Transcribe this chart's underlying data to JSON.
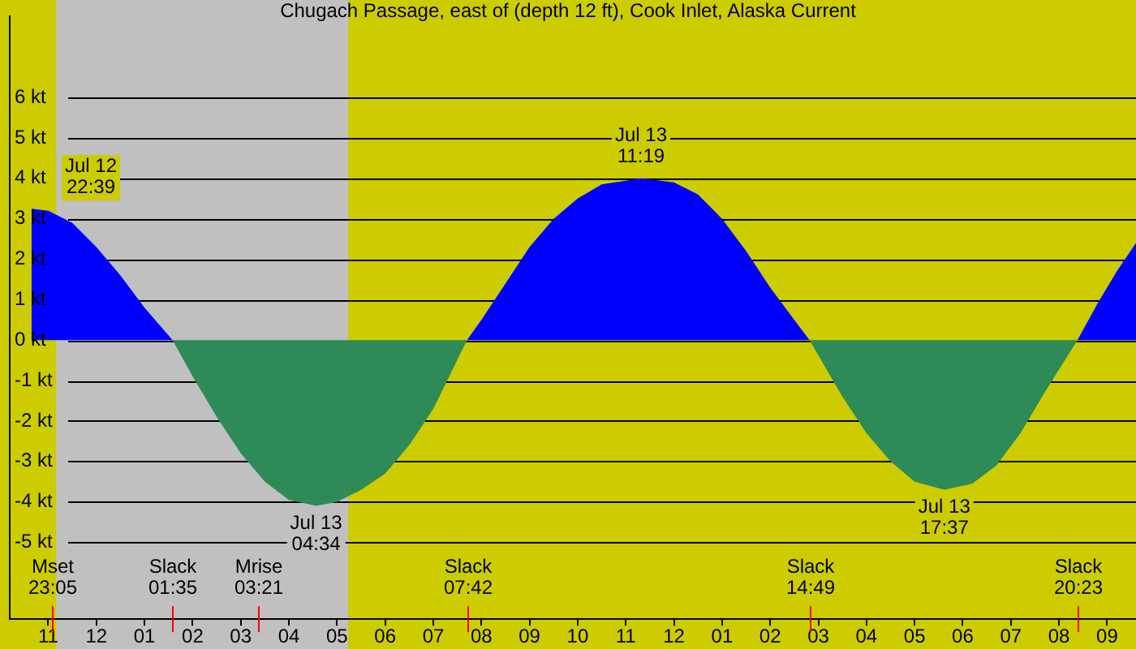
{
  "chart_data": {
    "type": "area",
    "title": "Chugach Passage, east of (depth 12 ft), Cook Inlet, Alaska Current",
    "series": [
      {
        "color": "#0000ff",
        "x": [
          "--07-12T22:39",
          "--07-12T23:00",
          "--07-12T23:30",
          "--07-13T00:00",
          "--07-13T00:30",
          "--07-13T01:00",
          "--07-13T01:35",
          "--07-13T01:36",
          "--07-13T07:41",
          "--07-13T07:42",
          "--07-13T08:00",
          "--07-13T08:30",
          "--07-13T09:00",
          "--07-13T09:30",
          "--07-13T10:00",
          "--07-13T10:30",
          "--07-13T11:19",
          "--07-13T12:00",
          "--07-13T12:30",
          "--07-13T13:00",
          "--07-13T13:30",
          "--07-13T14:00",
          "--07-13T14:30",
          "--07-13T14:49",
          "--07-13T14:50",
          "--07-13T20:22",
          "--07-13T20:23",
          "--07-13T20:48",
          "--07-13T21:12",
          "--07-13T21:36"
        ],
        "values": [
          3.25,
          3.2,
          2.9,
          2.3,
          1.6,
          0.8,
          0,
          null,
          null,
          0,
          0.5,
          1.4,
          2.3,
          3.0,
          3.5,
          3.85,
          4.0,
          3.9,
          3.6,
          3.0,
          2.2,
          1.3,
          0.5,
          0,
          null,
          null,
          0,
          0.9,
          1.7,
          2.4
        ]
      },
      {
        "color": "#2e8b57",
        "x": [
          "--07-13T01:35",
          "--07-13T02:00",
          "--07-13T02:30",
          "--07-13T03:00",
          "--07-13T03:30",
          "--07-13T04:00",
          "--07-13T04:34",
          "--07-13T05:00",
          "--07-13T05:30",
          "--07-13T06:00",
          "--07-13T06:30",
          "--07-13T07:00",
          "--07-13T07:42",
          "--07-13T07:43",
          "--07-13T14:48",
          "--07-13T14:49",
          "--07-13T15:30",
          "--07-13T16:00",
          "--07-13T16:30",
          "--07-13T17:00",
          "--07-13T17:37",
          "--07-13T18:12",
          "--07-13T18:42",
          "--07-13T19:12",
          "--07-13T19:42",
          "--07-13T20:23"
        ],
        "values": [
          0,
          -0.9,
          -1.9,
          -2.8,
          -3.5,
          -3.95,
          -4.1,
          -4.0,
          -3.7,
          -3.3,
          -2.6,
          -1.7,
          0,
          null,
          null,
          0,
          -1.4,
          -2.3,
          -3.0,
          -3.5,
          -3.7,
          -3.55,
          -3.1,
          -2.3,
          -1.3,
          0
        ]
      }
    ],
    "xlim": [
      "--07-12T22:12",
      "--07-13T21:36"
    ],
    "xticks": [
      {
        "value": "--07-12T23:00",
        "label": "11"
      },
      {
        "value": "--07-13T00:00",
        "label": "12"
      },
      {
        "value": "--07-13T01:00",
        "label": "01"
      },
      {
        "value": "--07-13T02:00",
        "label": "02"
      },
      {
        "value": "--07-13T03:00",
        "label": "03"
      },
      {
        "value": "--07-13T04:00",
        "label": "04"
      },
      {
        "value": "--07-13T05:00",
        "label": "05"
      },
      {
        "value": "--07-13T06:00",
        "label": "06"
      },
      {
        "value": "--07-13T07:00",
        "label": "07"
      },
      {
        "value": "--07-13T08:00",
        "label": "08"
      },
      {
        "value": "--07-13T09:00",
        "label": "09"
      },
      {
        "value": "--07-13T10:00",
        "label": "10"
      },
      {
        "value": "--07-13T11:00",
        "label": "11"
      },
      {
        "value": "--07-13T12:00",
        "label": "12"
      },
      {
        "value": "--07-13T13:00",
        "label": "01"
      },
      {
        "value": "--07-13T14:00",
        "label": "02"
      },
      {
        "value": "--07-13T15:00",
        "label": "03"
      },
      {
        "value": "--07-13T16:00",
        "label": "04"
      },
      {
        "value": "--07-13T17:00",
        "label": "05"
      },
      {
        "value": "--07-13T18:00",
        "label": "06"
      },
      {
        "value": "--07-13T19:00",
        "label": "07"
      },
      {
        "value": "--07-13T20:00",
        "label": "08"
      },
      {
        "value": "--07-13T21:00",
        "label": "09"
      }
    ],
    "ylim": [
      -6.9,
      8.0
    ],
    "yticks": [
      {
        "value": -5,
        "label": "-5 kt"
      },
      {
        "value": -4,
        "label": "-4 kt"
      },
      {
        "value": -3,
        "label": "-3 kt"
      },
      {
        "value": -2,
        "label": "-2 kt"
      },
      {
        "value": -1,
        "label": "-1 kt"
      },
      {
        "value": 0,
        "label": "0 kt"
      },
      {
        "value": 1,
        "label": "1 kt"
      },
      {
        "value": 2,
        "label": "2 kt"
      },
      {
        "value": 3,
        "label": "3 kt"
      },
      {
        "value": 4,
        "label": "4 kt"
      },
      {
        "value": 5,
        "label": "5 kt"
      },
      {
        "value": 6,
        "label": "6 kt"
      }
    ],
    "bands": [
      {
        "axis": "x",
        "from": "--07-12T23:10",
        "to": "--07-13T05:14",
        "color": "#c0c0c0"
      }
    ],
    "ref_lines": [
      {
        "axis": "x",
        "value": "--07-12T23:05",
        "label": "Mset 23:05",
        "color": "#ff0000"
      },
      {
        "axis": "x",
        "value": "--07-13T01:35",
        "label": "Slack 01:35",
        "color": "#ff0000"
      },
      {
        "axis": "x",
        "value": "--07-13T03:21",
        "label": "Mrise 03:21",
        "color": "#ff0000"
      },
      {
        "axis": "x",
        "value": "--07-13T07:42",
        "label": "Slack 07:42",
        "color": "#ff0000"
      },
      {
        "axis": "x",
        "value": "--07-13T14:49",
        "label": "Slack 14:49",
        "color": "#ff0000"
      },
      {
        "axis": "x",
        "value": "--07-13T20:23",
        "label": "Slack 20:23",
        "color": "#ff0000"
      }
    ],
    "annotations": [
      {
        "text": "Jul 12 22:39",
        "x": "--07-12T22:39",
        "y": 3.25
      },
      {
        "text": "Jul 13 04:34",
        "x": "--07-13T04:34",
        "y": -4.1
      },
      {
        "text": "Jul 13 11:19",
        "x": "--07-13T11:19",
        "y": 4.0
      },
      {
        "text": "Jul 13 17:37",
        "x": "--07-13T17:37",
        "y": -3.7
      }
    ],
    "grid": "y",
    "legend": false
  }
}
